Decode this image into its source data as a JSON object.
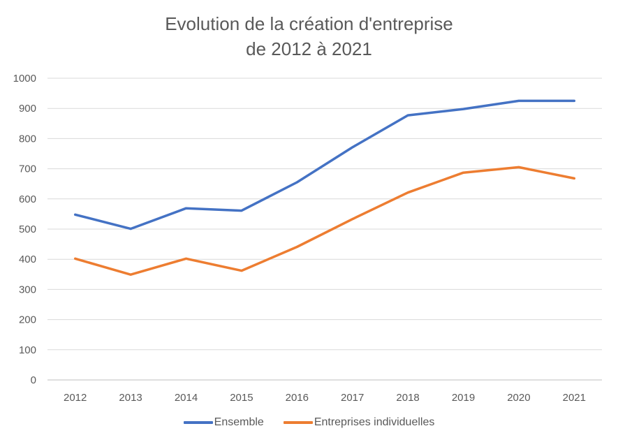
{
  "chart_data": {
    "type": "line",
    "title_line1": "Evolution de la création d'entreprise",
    "title_line2": "de 2012 à 2021",
    "xlabel": "",
    "ylabel": "",
    "categories": [
      "2012",
      "2013",
      "2014",
      "2015",
      "2016",
      "2017",
      "2018",
      "2019",
      "2020",
      "2021"
    ],
    "ylim": [
      0,
      1000
    ],
    "yticks": [
      0,
      100,
      200,
      300,
      400,
      500,
      600,
      700,
      800,
      900,
      1000
    ],
    "grid": true,
    "legend_position": "bottom",
    "series": [
      {
        "name": "Ensemble",
        "color": "#4472C4",
        "values": [
          548,
          501,
          569,
          561,
          655,
          771,
          877,
          898,
          925,
          925
        ]
      },
      {
        "name": "Entreprises individuelles",
        "color": "#ED7D31",
        "values": [
          402,
          349,
          402,
          362,
          441,
          533,
          621,
          687,
          705,
          668
        ]
      }
    ]
  }
}
